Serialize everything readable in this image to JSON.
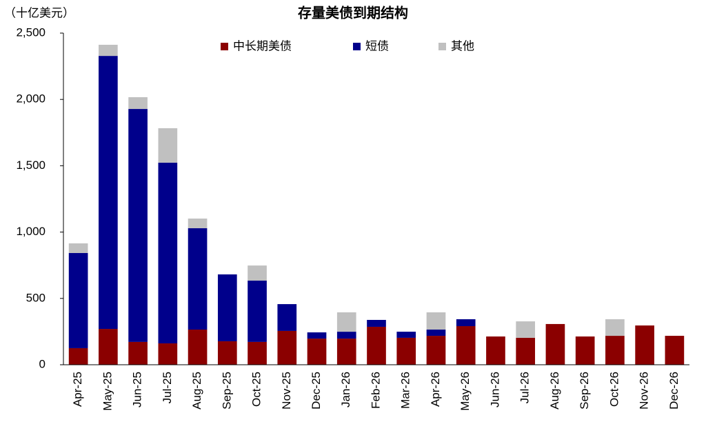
{
  "chart_data": {
    "type": "stacked_bar",
    "title": "存量美债到期结构",
    "y_label": "（十亿美元）",
    "categories": [
      "Apr-25",
      "May-25",
      "Jun-25",
      "Jul-25",
      "Aug-25",
      "Sep-25",
      "Oct-25",
      "Nov-25",
      "Dec-25",
      "Jan-26",
      "Feb-26",
      "Mar-26",
      "Apr-26",
      "May-26",
      "Jun-26",
      "Jul-26",
      "Aug-26",
      "Sep-26",
      "Oct-26",
      "Nov-26",
      "Dec-26"
    ],
    "series": [
      {
        "name": "中长期美债",
        "color": "#8b0000",
        "values": [
          125,
          270,
          172,
          161,
          265,
          177,
          172,
          255,
          197,
          197,
          286,
          203,
          218,
          291,
          213,
          203,
          307,
          213,
          218,
          296,
          218
        ]
      },
      {
        "name": "短债",
        "color": "#00008b",
        "values": [
          717,
          2058,
          1756,
          1362,
          764,
          504,
          462,
          202,
          47,
          52,
          52,
          46,
          47,
          52,
          0,
          0,
          0,
          0,
          0,
          0,
          0
        ]
      },
      {
        "name": "其他",
        "color": "#c0c0c0",
        "values": [
          73,
          84,
          89,
          260,
          73,
          0,
          114,
          0,
          0,
          146,
          0,
          0,
          130,
          0,
          0,
          124,
          0,
          0,
          125,
          0,
          0
        ]
      }
    ],
    "ylim": [
      0,
      2500
    ],
    "yticks": [
      0,
      500,
      {
        "value": 1000,
        "label": "1,000"
      },
      {
        "value": 1500,
        "label": "1,500"
      },
      {
        "value": 2000,
        "label": "2,000"
      },
      {
        "value": 2500,
        "label": "2,500"
      }
    ],
    "legend": "top"
  }
}
